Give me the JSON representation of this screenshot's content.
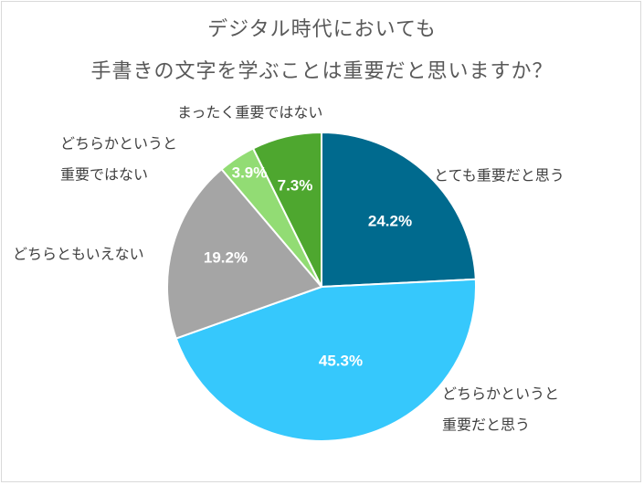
{
  "chart_data": {
    "type": "pie",
    "title_lines": [
      "デジタル時代においても",
      "手書きの文字を学ぶことは重要だと思いますか？"
    ],
    "slices": [
      {
        "category_lines": [
          "とても重要だと思う"
        ],
        "value": 24.2,
        "value_label": "24.2%",
        "color": "#006a8e"
      },
      {
        "category_lines": [
          "どちらかというと",
          "重要だと思う"
        ],
        "value": 45.3,
        "value_label": "45.3%",
        "color": "#36c8fc"
      },
      {
        "category_lines": [
          "どちらともいえない"
        ],
        "value": 19.2,
        "value_label": "19.2%",
        "color": "#a5a5a5"
      },
      {
        "category_lines": [
          "どちらかというと",
          "重要ではない"
        ],
        "value": 3.9,
        "value_label": "3.9%",
        "color": "#92dc74"
      },
      {
        "category_lines": [
          "まったく重要ではない"
        ],
        "value": 7.3,
        "value_label": "7.3%",
        "color": "#4ea72f"
      }
    ],
    "start_angle": "12 o'clock",
    "direction": "clockwise",
    "legend": "none"
  }
}
